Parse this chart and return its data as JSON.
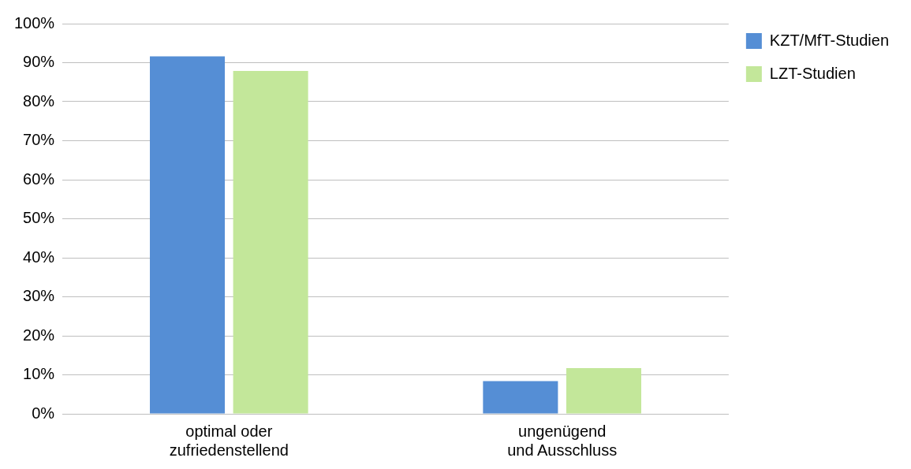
{
  "chart_data": {
    "type": "bar",
    "categories": [
      "optimal oder\nzufriedenstellend",
      "ungenügend\nund Ausschluss"
    ],
    "series": [
      {
        "name": "KZT/MfT-Studien",
        "color": "#558ed5",
        "values": [
          91.6,
          8.4
        ]
      },
      {
        "name": "LZT-Studien",
        "color": "#c3e79a",
        "values": [
          87.9,
          11.7
        ]
      }
    ],
    "ylim": [
      0,
      100
    ],
    "yticks": [
      {
        "value": 0,
        "label": "0%"
      },
      {
        "value": 10,
        "label": "10%"
      },
      {
        "value": 20,
        "label": "20%"
      },
      {
        "value": 30,
        "label": "30%"
      },
      {
        "value": 40,
        "label": "40%"
      },
      {
        "value": 50,
        "label": "50%"
      },
      {
        "value": 60,
        "label": "60%"
      },
      {
        "value": 70,
        "label": "70%"
      },
      {
        "value": 80,
        "label": "80%"
      },
      {
        "value": 90,
        "label": "90%"
      },
      {
        "value": 100,
        "label": "100%"
      }
    ],
    "grid": "y",
    "legend": "top right"
  }
}
